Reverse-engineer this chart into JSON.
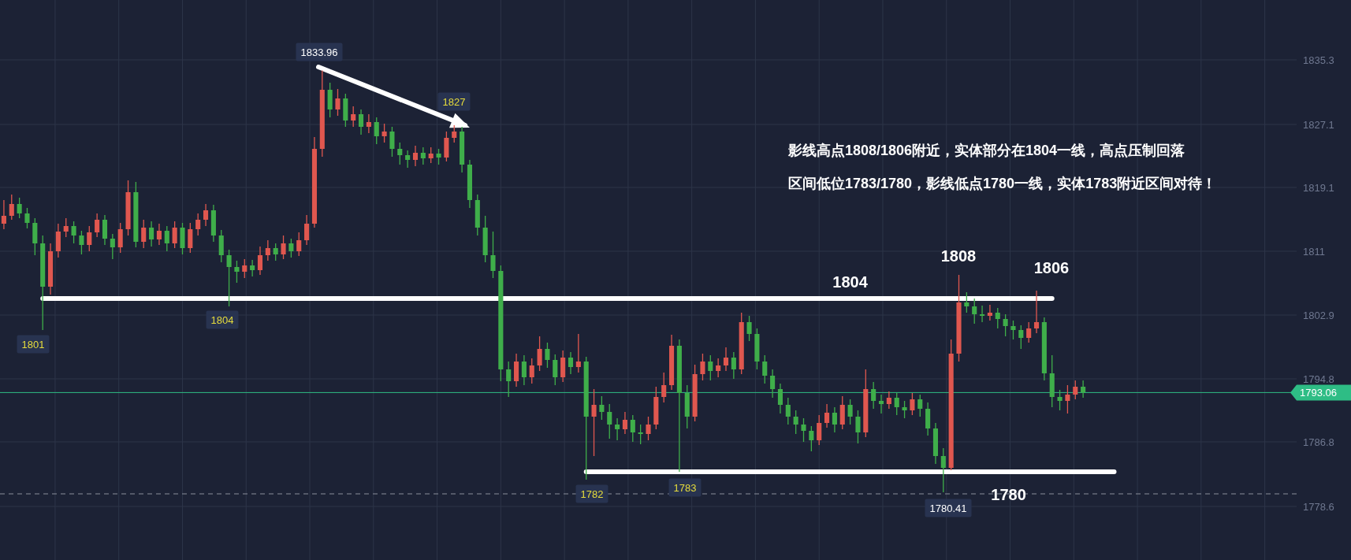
{
  "chart_data": {
    "type": "candlestick",
    "categories": [
      null,
      null,
      null,
      null,
      null,
      null,
      null,
      null,
      null,
      null,
      null,
      null,
      null,
      null,
      null,
      null,
      null,
      null,
      null,
      null,
      null,
      null,
      null,
      null,
      null,
      null,
      null,
      null,
      null,
      null,
      null,
      null,
      null,
      null,
      null,
      null,
      null,
      null,
      null,
      null,
      null,
      null,
      null,
      null,
      null,
      null,
      null,
      null,
      null,
      null,
      null,
      null,
      null,
      null,
      null,
      null,
      null,
      null,
      null,
      null,
      null,
      null,
      null,
      null,
      null,
      null,
      null,
      null,
      null,
      null,
      null,
      null,
      null,
      null,
      null,
      null,
      null,
      null,
      null,
      null,
      null,
      null,
      null,
      null,
      null,
      null,
      null,
      null,
      null,
      null,
      null,
      null,
      null,
      null,
      null,
      null,
      null,
      null,
      null,
      null,
      null,
      null,
      null,
      null,
      null,
      null,
      null,
      null,
      null,
      null,
      null,
      null,
      null,
      null,
      null,
      null,
      null,
      null,
      null,
      null,
      null,
      null,
      null,
      null,
      null,
      null,
      null,
      null,
      null,
      null,
      null,
      null,
      null,
      null,
      null,
      null,
      null,
      null,
      null,
      null,
      null,
      null,
      null,
      null,
      null,
      null,
      null,
      null,
      null,
      null,
      null,
      null,
      null,
      null,
      null,
      null,
      null,
      null,
      null,
      null,
      null,
      null,
      null,
      null,
      null,
      null,
      null
    ],
    "ohlc": [
      [
        1814.5,
        1817.5,
        1813.8,
        1815.5
      ],
      [
        1815.5,
        1818.2,
        1815.0,
        1817.0
      ],
      [
        1817.0,
        1817.8,
        1815.2,
        1815.8
      ],
      [
        1815.8,
        1816.5,
        1813.9,
        1814.6
      ],
      [
        1814.6,
        1815.2,
        1810.5,
        1812.0
      ],
      [
        1812.0,
        1813.0,
        1801.0,
        1806.5
      ],
      [
        1806.5,
        1812.0,
        1805.5,
        1811.0
      ],
      [
        1811.0,
        1814.5,
        1810.2,
        1813.5
      ],
      [
        1813.5,
        1815.2,
        1812.8,
        1814.2
      ],
      [
        1814.2,
        1814.8,
        1812.0,
        1813.0
      ],
      [
        1813.0,
        1813.6,
        1810.6,
        1811.8
      ],
      [
        1811.8,
        1814.2,
        1811.0,
        1813.4
      ],
      [
        1813.4,
        1815.8,
        1812.8,
        1815.0
      ],
      [
        1815.0,
        1815.6,
        1811.8,
        1812.6
      ],
      [
        1812.6,
        1813.2,
        1810.0,
        1811.5
      ],
      [
        1811.5,
        1814.6,
        1810.8,
        1813.8
      ],
      [
        1813.8,
        1820.0,
        1813.0,
        1818.5
      ],
      [
        1818.5,
        1819.8,
        1811.5,
        1812.2
      ],
      [
        1812.2,
        1815.0,
        1811.4,
        1814.0
      ],
      [
        1814.0,
        1814.8,
        1811.6,
        1812.5
      ],
      [
        1812.5,
        1814.5,
        1811.8,
        1813.6
      ],
      [
        1813.6,
        1814.2,
        1811.0,
        1812.0
      ],
      [
        1812.0,
        1814.8,
        1811.4,
        1814.0
      ],
      [
        1814.0,
        1814.6,
        1810.6,
        1811.4
      ],
      [
        1811.4,
        1814.6,
        1810.8,
        1813.8
      ],
      [
        1813.8,
        1815.8,
        1813.0,
        1815.0
      ],
      [
        1815.0,
        1817.0,
        1814.2,
        1816.2
      ],
      [
        1816.2,
        1816.9,
        1812.2,
        1813.0
      ],
      [
        1813.0,
        1813.7,
        1809.6,
        1810.5
      ],
      [
        1810.5,
        1811.2,
        1804.0,
        1809.0
      ],
      [
        1809.0,
        1809.8,
        1807.0,
        1808.4
      ],
      [
        1808.4,
        1810.0,
        1807.6,
        1809.2
      ],
      [
        1809.2,
        1809.9,
        1807.8,
        1808.6
      ],
      [
        1808.6,
        1811.6,
        1808.0,
        1810.5
      ],
      [
        1810.5,
        1812.4,
        1809.8,
        1811.4
      ],
      [
        1811.4,
        1812.0,
        1809.8,
        1810.6
      ],
      [
        1810.6,
        1813.0,
        1810.0,
        1812.0
      ],
      [
        1812.0,
        1812.6,
        1810.2,
        1811.0
      ],
      [
        1811.0,
        1813.4,
        1810.4,
        1812.4
      ],
      [
        1812.4,
        1815.6,
        1811.8,
        1814.5
      ],
      [
        1814.5,
        1825.5,
        1814.0,
        1824.0
      ],
      [
        1824.0,
        1833.96,
        1823.0,
        1831.5
      ],
      [
        1831.5,
        1832.4,
        1828.0,
        1829.0
      ],
      [
        1829.0,
        1831.6,
        1828.2,
        1830.4
      ],
      [
        1830.4,
        1831.0,
        1826.8,
        1827.6
      ],
      [
        1827.6,
        1829.4,
        1826.8,
        1828.4
      ],
      [
        1828.4,
        1829.0,
        1825.8,
        1826.8
      ],
      [
        1826.8,
        1828.4,
        1826.0,
        1827.4
      ],
      [
        1827.4,
        1828.0,
        1824.6,
        1825.6
      ],
      [
        1825.6,
        1827.2,
        1824.8,
        1826.2
      ],
      [
        1826.2,
        1826.8,
        1823.0,
        1824.0
      ],
      [
        1824.0,
        1824.8,
        1822.0,
        1823.2
      ],
      [
        1823.2,
        1823.8,
        1821.6,
        1822.6
      ],
      [
        1822.6,
        1824.4,
        1821.8,
        1823.5
      ],
      [
        1823.5,
        1824.2,
        1822.0,
        1822.8
      ],
      [
        1822.8,
        1824.2,
        1822.2,
        1823.4
      ],
      [
        1823.4,
        1824.0,
        1822.0,
        1822.9
      ],
      [
        1822.9,
        1826.2,
        1822.4,
        1825.4
      ],
      [
        1825.4,
        1827.0,
        1824.8,
        1826.2
      ],
      [
        1826.2,
        1826.8,
        1821.0,
        1822.0
      ],
      [
        1822.0,
        1822.6,
        1816.5,
        1817.5
      ],
      [
        1817.5,
        1818.2,
        1813.0,
        1814.0
      ],
      [
        1814.0,
        1815.5,
        1809.6,
        1810.5
      ],
      [
        1810.5,
        1813.5,
        1807.6,
        1808.5
      ],
      [
        1808.5,
        1809.2,
        1794.5,
        1796.0
      ],
      [
        1796.0,
        1797.0,
        1792.5,
        1794.5
      ],
      [
        1794.5,
        1798.0,
        1793.8,
        1797.0
      ],
      [
        1797.0,
        1797.8,
        1794.0,
        1795.0
      ],
      [
        1795.0,
        1797.4,
        1794.2,
        1796.5
      ],
      [
        1796.5,
        1800.2,
        1795.8,
        1798.6
      ],
      [
        1798.6,
        1799.4,
        1796.2,
        1797.2
      ],
      [
        1797.2,
        1797.9,
        1794.0,
        1795.0
      ],
      [
        1795.0,
        1798.4,
        1794.4,
        1797.5
      ],
      [
        1797.5,
        1798.2,
        1795.4,
        1796.3
      ],
      [
        1796.3,
        1800.5,
        1795.6,
        1797.0
      ],
      [
        1797.0,
        1797.6,
        1782.0,
        1790.0
      ],
      [
        1790.0,
        1793.5,
        1785.0,
        1791.5
      ],
      [
        1791.5,
        1792.6,
        1789.6,
        1790.6
      ],
      [
        1790.6,
        1791.6,
        1787.2,
        1789.0
      ],
      [
        1789.0,
        1789.8,
        1787.0,
        1788.4
      ],
      [
        1788.4,
        1790.6,
        1787.8,
        1789.6
      ],
      [
        1789.6,
        1790.2,
        1786.8,
        1788.0
      ],
      [
        1788.0,
        1789.0,
        1786.5,
        1787.8
      ],
      [
        1787.8,
        1790.0,
        1787.0,
        1789.0
      ],
      [
        1789.0,
        1793.8,
        1788.4,
        1792.5
      ],
      [
        1792.5,
        1795.6,
        1791.8,
        1794.0
      ],
      [
        1794.0,
        1800.4,
        1793.4,
        1799.0
      ],
      [
        1799.0,
        1799.8,
        1783.0,
        1793.0
      ],
      [
        1793.0,
        1794.0,
        1788.5,
        1790.0
      ],
      [
        1790.0,
        1796.6,
        1789.4,
        1795.4
      ],
      [
        1795.4,
        1798.0,
        1794.6,
        1797.0
      ],
      [
        1797.0,
        1797.8,
        1794.6,
        1795.8
      ],
      [
        1795.8,
        1797.4,
        1795.0,
        1796.5
      ],
      [
        1796.5,
        1798.8,
        1795.8,
        1797.5
      ],
      [
        1797.5,
        1798.2,
        1794.8,
        1796.0
      ],
      [
        1796.0,
        1803.2,
        1795.4,
        1802.0
      ],
      [
        1802.0,
        1802.8,
        1799.6,
        1800.5
      ],
      [
        1800.5,
        1801.2,
        1796.0,
        1797.0
      ],
      [
        1797.0,
        1797.8,
        1794.2,
        1795.2
      ],
      [
        1795.2,
        1796.0,
        1792.4,
        1793.5
      ],
      [
        1793.5,
        1794.2,
        1790.4,
        1791.5
      ],
      [
        1791.5,
        1792.4,
        1789.0,
        1790.0
      ],
      [
        1790.0,
        1790.8,
        1787.8,
        1789.0
      ],
      [
        1789.0,
        1789.8,
        1786.8,
        1788.2
      ],
      [
        1788.2,
        1788.8,
        1785.6,
        1787.0
      ],
      [
        1787.0,
        1790.2,
        1786.4,
        1789.2
      ],
      [
        1789.2,
        1791.6,
        1788.6,
        1790.5
      ],
      [
        1790.5,
        1791.2,
        1788.0,
        1789.0
      ],
      [
        1789.0,
        1792.6,
        1788.4,
        1791.5
      ],
      [
        1791.5,
        1792.2,
        1789.0,
        1790.0
      ],
      [
        1790.0,
        1790.8,
        1786.6,
        1788.0
      ],
      [
        1788.0,
        1796.0,
        1787.4,
        1793.5
      ],
      [
        1793.5,
        1794.4,
        1791.0,
        1792.0
      ],
      [
        1792.0,
        1792.8,
        1790.4,
        1791.6
      ],
      [
        1791.6,
        1793.2,
        1791.0,
        1792.4
      ],
      [
        1792.4,
        1793.0,
        1790.2,
        1791.2
      ],
      [
        1791.2,
        1792.0,
        1789.8,
        1790.8
      ],
      [
        1790.8,
        1793.0,
        1790.2,
        1792.2
      ],
      [
        1792.2,
        1792.8,
        1790.0,
        1791.0
      ],
      [
        1791.0,
        1791.8,
        1787.6,
        1788.5
      ],
      [
        1788.5,
        1789.2,
        1784.0,
        1785.0
      ],
      [
        1785.0,
        1786.0,
        1780.41,
        1783.5
      ],
      [
        1783.5,
        1799.8,
        1783.2,
        1798.0
      ],
      [
        1798.0,
        1808.0,
        1797.0,
        1804.5
      ],
      [
        1804.5,
        1805.8,
        1803.2,
        1804.0
      ],
      [
        1804.0,
        1805.0,
        1801.8,
        1803.0
      ],
      [
        1803.0,
        1804.1,
        1802.0,
        1802.8
      ],
      [
        1802.8,
        1804.2,
        1802.2,
        1803.2
      ],
      [
        1803.2,
        1803.8,
        1801.2,
        1802.4
      ],
      [
        1802.4,
        1803.0,
        1800.2,
        1801.5
      ],
      [
        1801.5,
        1802.2,
        1799.8,
        1801.0
      ],
      [
        1801.0,
        1801.6,
        1798.6,
        1800.0
      ],
      [
        1800.0,
        1802.0,
        1799.4,
        1801.2
      ],
      [
        1801.2,
        1806.0,
        1800.6,
        1802.0
      ],
      [
        1802.0,
        1802.6,
        1794.6,
        1795.5
      ],
      [
        1795.5,
        1797.8,
        1791.2,
        1792.5
      ],
      [
        1792.5,
        1793.4,
        1790.8,
        1792.0
      ],
      [
        1792.0,
        1794.0,
        1790.4,
        1792.8
      ],
      [
        1792.8,
        1794.6,
        1792.2,
        1793.8
      ],
      [
        1793.8,
        1794.6,
        1792.4,
        1793.06
      ],
      null,
      null,
      null,
      null,
      null,
      null,
      null,
      null,
      null,
      null,
      null,
      null,
      null,
      null,
      null,
      null,
      null,
      null,
      null,
      null,
      null,
      null,
      null,
      null,
      null,
      null,
      null
    ],
    "colors": [
      "#e0574f",
      "#e0574f",
      "#3fae4a",
      "#3fae4a",
      "#3fae4a",
      "#3fae4a",
      "#e0574f",
      "#e0574f",
      "#e0574f",
      "#3fae4a",
      "#3fae4a",
      "#e0574f",
      "#e0574f",
      "#3fae4a",
      "#3fae4a",
      "#e0574f",
      "#e0574f",
      "#3fae4a",
      "#e0574f",
      "#3fae4a",
      "#e0574f",
      "#3fae4a",
      "#e0574f",
      "#3fae4a",
      "#e0574f",
      "#e0574f",
      "#e0574f",
      "#3fae4a",
      "#3fae4a",
      "#3fae4a",
      "#3fae4a",
      "#e0574f",
      "#3fae4a",
      "#e0574f",
      "#e0574f",
      "#3fae4a",
      "#e0574f",
      "#3fae4a",
      "#e0574f",
      "#e0574f",
      "#e0574f",
      "#e0574f",
      "#3fae4a",
      "#e0574f",
      "#3fae4a",
      "#e0574f",
      "#3fae4a",
      "#e0574f",
      "#3fae4a",
      "#e0574f",
      "#3fae4a",
      "#3fae4a",
      "#3fae4a",
      "#e0574f",
      "#3fae4a",
      "#e0574f",
      "#3fae4a",
      "#e0574f",
      "#e0574f",
      "#3fae4a",
      "#3fae4a",
      "#3fae4a",
      "#3fae4a",
      "#3fae4a",
      "#3fae4a",
      "#3fae4a",
      "#e0574f",
      "#3fae4a",
      "#e0574f",
      "#e0574f",
      "#3fae4a",
      "#3fae4a",
      "#e0574f",
      "#3fae4a",
      "#e0574f",
      "#3fae4a",
      "#e0574f",
      "#3fae4a",
      "#3fae4a",
      "#3fae4a",
      "#e0574f",
      "#3fae4a",
      "#3fae4a",
      "#e0574f",
      "#e0574f",
      "#e0574f",
      "#e0574f",
      "#3fae4a",
      "#3fae4a",
      "#e0574f",
      "#e0574f",
      "#3fae4a",
      "#e0574f",
      "#e0574f",
      "#3fae4a",
      "#e0574f",
      "#3fae4a",
      "#3fae4a",
      "#3fae4a",
      "#3fae4a",
      "#3fae4a",
      "#3fae4a",
      "#3fae4a",
      "#3fae4a",
      "#3fae4a",
      "#e0574f",
      "#e0574f",
      "#3fae4a",
      "#e0574f",
      "#3fae4a",
      "#3fae4a",
      "#e0574f",
      "#3fae4a",
      "#3fae4a",
      "#e0574f",
      "#3fae4a",
      "#3fae4a",
      "#e0574f",
      "#3fae4a",
      "#3fae4a",
      "#3fae4a",
      "#3fae4a",
      "#e0574f",
      "#e0574f",
      "#3fae4a",
      "#3fae4a",
      "#3fae4a",
      "#e0574f",
      "#3fae4a",
      "#3fae4a",
      "#3fae4a",
      "#3fae4a",
      "#e0574f",
      "#e0574f",
      "#3fae4a",
      "#3fae4a",
      "#3fae4a",
      "#e0574f",
      "#e0574f",
      "#3fae4a",
      null,
      null,
      null,
      null,
      null,
      null,
      null,
      null,
      null,
      null,
      null,
      null,
      null,
      null,
      null,
      null,
      null,
      null,
      null,
      null,
      null,
      null,
      null,
      null,
      null,
      null,
      null
    ],
    "series": [
      {
        "type": "line",
        "name": "1804",
        "color": "#ffffff",
        "values": [
          null,
          null,
          null,
          null,
          null,
          1805,
          1805,
          1805,
          1805,
          1805,
          1805,
          1805,
          1805,
          1805,
          1805,
          1805,
          1805,
          1805,
          1805,
          1805,
          1805,
          1805,
          1805,
          1805,
          1805,
          1805,
          1805,
          1805,
          1805,
          1805,
          1805,
          1805,
          1805,
          1805,
          1805,
          1805,
          1805,
          1805,
          1805,
          1805,
          1805,
          1805,
          1805,
          1805,
          1805,
          1805,
          1805,
          1805,
          1805,
          1805,
          1805,
          1805,
          1805,
          1805,
          1805,
          1805,
          1805,
          1805,
          1805,
          1805,
          1805,
          1805,
          1805,
          1805,
          1805,
          1805,
          1805,
          1805,
          1805,
          1805,
          1805,
          1805,
          1805,
          1805,
          1805,
          1805,
          1805,
          1805,
          1805,
          1805,
          1805,
          1805,
          1805,
          1805,
          1805,
          1805,
          1805,
          1805,
          1805,
          1805,
          1805,
          1805,
          1805,
          1805,
          1805,
          1805,
          1805,
          1805,
          1805,
          1805,
          1805,
          1805,
          1805,
          1805,
          1805,
          1805,
          1805,
          1805,
          1805,
          1805,
          1805,
          1805,
          1805,
          1805,
          1805,
          1805,
          1805,
          1805,
          1805,
          1805,
          1805,
          1805,
          1805,
          1805,
          1805,
          1805,
          1805,
          1805,
          1805,
          1805,
          1805,
          1805,
          1805,
          1805,
          1805,
          1805,
          null,
          null,
          null,
          null,
          null,
          null,
          null,
          null,
          null,
          null,
          null,
          null,
          null,
          null,
          null,
          null,
          null,
          null,
          null,
          null,
          null,
          null,
          null,
          null,
          null,
          null,
          null,
          null,
          null,
          null,
          null
        ]
      },
      {
        "type": "line",
        "name": "1780",
        "color": "#ffffff",
        "values": [
          null,
          null,
          null,
          null,
          null,
          null,
          null,
          null,
          null,
          null,
          null,
          null,
          null,
          null,
          null,
          null,
          null,
          null,
          null,
          null,
          null,
          null,
          null,
          null,
          null,
          null,
          null,
          null,
          null,
          null,
          null,
          null,
          null,
          null,
          null,
          null,
          null,
          null,
          null,
          null,
          null,
          null,
          null,
          null,
          null,
          null,
          null,
          null,
          null,
          null,
          null,
          null,
          null,
          null,
          null,
          null,
          null,
          null,
          null,
          null,
          null,
          null,
          null,
          null,
          null,
          null,
          null,
          null,
          null,
          null,
          null,
          null,
          null,
          null,
          null,
          1783,
          1783,
          1783,
          1783,
          1783,
          1783,
          1783,
          1783,
          1783,
          1783,
          1783,
          1783,
          1783,
          1783,
          1783,
          1783,
          1783,
          1783,
          1783,
          1783,
          1783,
          1783,
          1783,
          1783,
          1783,
          1783,
          1783,
          1783,
          1783,
          1783,
          1783,
          1783,
          1783,
          1783,
          1783,
          1783,
          1783,
          1783,
          1783,
          1783,
          1783,
          1783,
          1783,
          1783,
          1783,
          1783,
          1783,
          1783,
          1783,
          1783,
          1783,
          1783,
          1783,
          1783,
          1783,
          1783,
          1783,
          1783,
          1783,
          1783,
          1783,
          1783,
          1783,
          1783,
          1783,
          1783,
          1783,
          1783,
          1783,
          null,
          null,
          null,
          null,
          null,
          null,
          null,
          null,
          null,
          null,
          null,
          null,
          null,
          null,
          null,
          null,
          null,
          null,
          null,
          null,
          null,
          null,
          null
        ]
      }
    ],
    "ylim": [
      1771.8,
      1842.9
    ],
    "yticks": [
      1778.6,
      1786.8,
      1794.8,
      1802.9,
      1811.0,
      1819.1,
      1827.1,
      1835.3
    ],
    "grid": true,
    "ref_lines": [
      {
        "axis": "y",
        "value": 1793.06,
        "label": "1793.06",
        "color": "#2ebd85"
      },
      {
        "axis": "y",
        "value": 1780.2,
        "color": "#8a8f9c",
        "line_style": "dashed"
      }
    ],
    "annotations": [
      "1833.96",
      "1827",
      "1801",
      "1804",
      "1782",
      "1783",
      "1780.41",
      "1808",
      "1806",
      "影线高点1808/1806附近，实体部分在1804一线，高点压制回落",
      "区间低位1783/1780，影线低点1780一线，实体1783附近区间对待！"
    ]
  }
}
